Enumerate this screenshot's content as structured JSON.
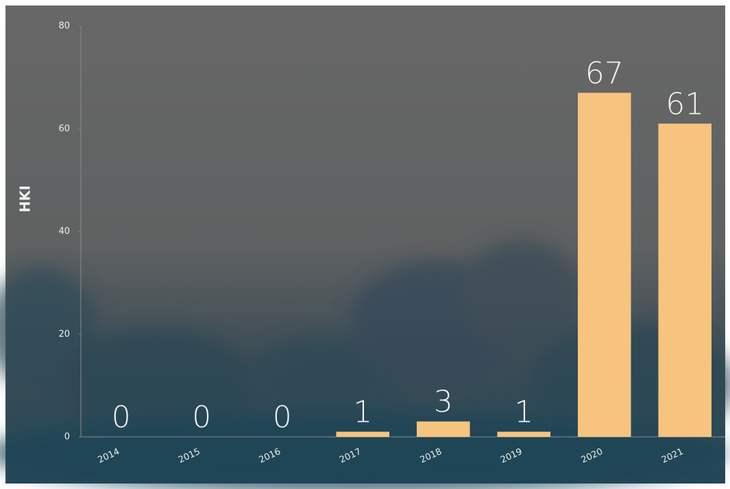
{
  "chart_data": {
    "type": "bar",
    "y_label": "HKI",
    "categories": [
      "2014",
      "2015",
      "2016",
      "2017",
      "2018",
      "2019",
      "2020",
      "2021"
    ],
    "values": [
      0,
      0,
      0,
      1,
      3,
      1,
      67,
      61
    ],
    "color": "#f6c47e",
    "ylim": [
      0,
      80
    ],
    "yticks": [
      0,
      20,
      40,
      60,
      80
    ],
    "grid": false
  }
}
